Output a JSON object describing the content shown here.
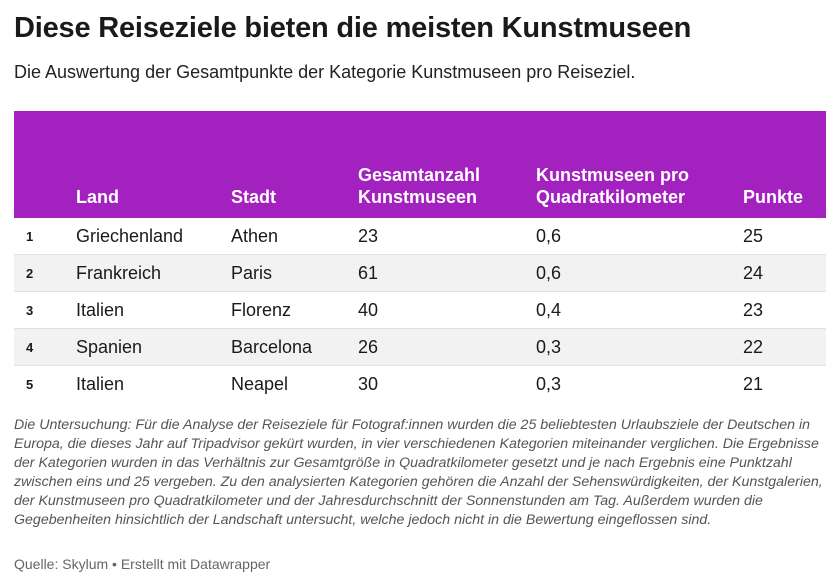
{
  "title": "Diese Reiseziele bieten die meisten Kunstmuseen",
  "subtitle": "Die Auswertung der Gesamtpunkte der Kategorie Kunstmuseen pro Reiseziel.",
  "chart_data": {
    "type": "table",
    "columns": [
      "",
      "Land",
      "Stadt",
      "Gesamtanzahl Kunstmuseen",
      "Kunstmuseen pro Quadratkilometer",
      "Punkte"
    ],
    "rows": [
      [
        "1",
        "Griechenland",
        "Athen",
        "23",
        "0,6",
        "25"
      ],
      [
        "2",
        "Frankreich",
        "Paris",
        "61",
        "0,6",
        "24"
      ],
      [
        "3",
        "Italien",
        "Florenz",
        "40",
        "0,4",
        "23"
      ],
      [
        "4",
        "Spanien",
        "Barcelona",
        "26",
        "0,3",
        "22"
      ],
      [
        "5",
        "Italien",
        "Neapel",
        "30",
        "0,3",
        "21"
      ]
    ]
  },
  "note": "Die Untersuchung: Für die Analyse der Reiseziele für Fotograf:innen wurden die 25 beliebtesten Urlaubsziele der Deutschen in Europa, die dieses Jahr auf Tripadvisor gekürt wurden, in vier verschiedenen Kategorien miteinander verglichen. Die Ergebnisse der Kategorien wurden in das Verhältnis zur Gesamtgröße in Quadratkilometer gesetzt und je nach Ergebnis eine Punktzahl zwischen eins und 25 vergeben. Zu den analysierten Kategorien gehören die Anzahl der Sehenswürdigkeiten, der Kunstgalerien, der Kunstmuseen pro Quadratkilometer und der Jahresdurchschnitt der Sonnenstunden am Tag. Außerdem wurden die Gegebenheiten hinsichtlich der Landschaft untersucht, welche jedoch nicht in die Bewertung eingeflossen sind.",
  "footer": "Quelle: Skylum • Erstellt mit Datawrapper",
  "colors": {
    "header_bg": "#a321be",
    "header_text": "#ffffff",
    "row_alt": "#f2f2f2"
  }
}
